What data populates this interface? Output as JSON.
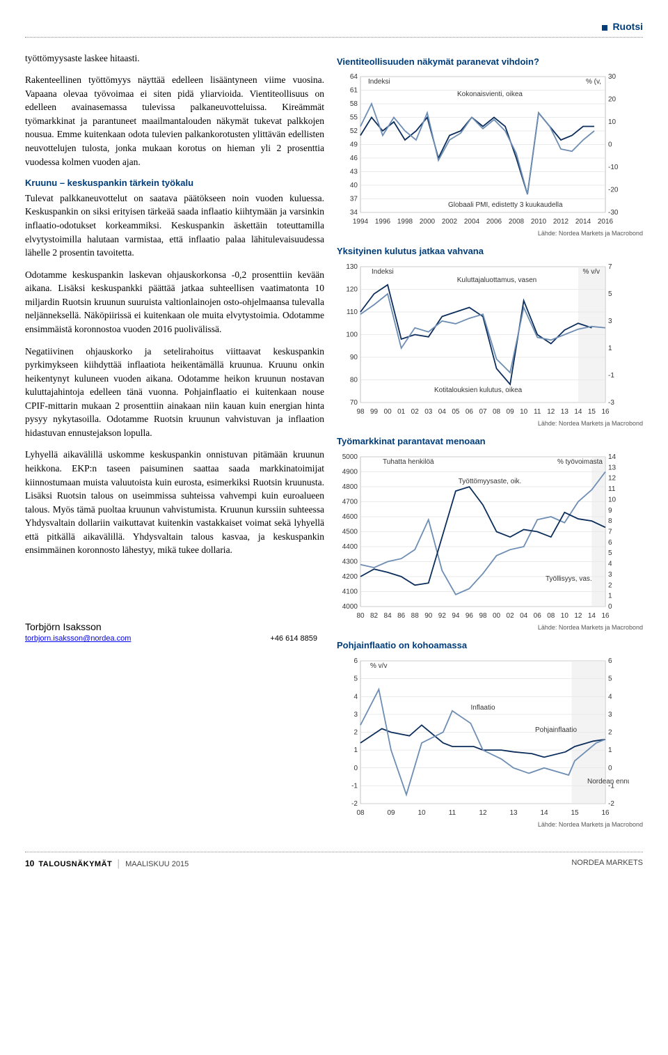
{
  "header": {
    "country": "Ruotsi"
  },
  "body": {
    "p1": "työttömyysaste laskee hitaasti.",
    "p2": "Rakenteellinen työttömyys näyttää edelleen lisääntyneen viime vuosina. Vapaana olevaa työvoimaa ei siten pidä yliarvioida. Vientiteollisuus on edelleen avainasemassa tulevissa palkaneuvotteluissa. Kireämmät työmarkkinat ja parantuneet maailmantalouden näkymät tukevat palkkojen nousua. Emme kuitenkaan odota tulevien palkankorotusten ylittävän edellisten neuvottelujen tulosta, jonka mukaan korotus on hieman yli 2 prosenttia vuodessa kolmen vuoden ajan.",
    "sub1": "Kruunu – keskuspankin tärkein työkalu",
    "p3": "Tulevat palkkaneuvottelut on saatava päätökseen noin vuoden kuluessa. Keskuspankin on siksi erityisen tärkeää saada inflaatio kiihtymään ja varsinkin inflaatio-odotukset korkeammiksi. Keskuspankin äskettäin toteuttamilla elvytystoimilla halutaan varmistaa, että inflaatio palaa lähitulevaisuudessa lähelle 2 prosentin tavoitetta.",
    "p4": "Odotamme keskuspankin laskevan ohjauskorkonsa -0,2 prosenttiin kevään aikana. Lisäksi keskuspankki päättää jatkaa suhteellisen vaatimatonta 10 miljardin Ruotsin kruunun suuruista valtionlainojen osto-ohjelmaansa tulevalla neljänneksellä. Näköpiirissä ei kuitenkaan ole muita elvytystoimia. Odotamme ensimmäistä koronnostoa vuoden 2016 puolivälissä.",
    "p5": "Negatiivinen ohjauskorko ja setelirahoitus viittaavat keskuspankin pyrkimykseen kiihdyttää inflaatiota heikentämällä kruunua. Kruunu onkin heikentynyt kuluneen vuoden aikana. Odotamme heikon kruunun nostavan kuluttajahintoja edelleen tänä vuonna. Pohjainflaatio ei kuitenkaan nouse CPIF-mittarin mukaan 2 prosenttiin ainakaan niin kauan kuin energian hinta pysyy nykytasoilla. Odotamme Ruotsin kruunun vahvistuvan ja inflaation hidastuvan ennustejakson lopulla.",
    "p6": "Lyhyellä aikavälillä uskomme keskuspankin onnistuvan pitämään kruunun heikkona. EKP:n taseen paisuminen saattaa saada markkinatoimijat kiinnostumaan muista valuutoista kuin eurosta, esimerkiksi Ruotsin kruunusta. Lisäksi Ruotsin talous on useimmissa suhteissa vahvempi kuin euroalueen talous. Myös tämä puoltaa kruunun vahvistumista. Kruunun kurssiin suhteessa Yhdysvaltain dollariin vaikuttavat kuitenkin vastakkaiset voimat sekä lyhyellä että pitkällä aikavälillä. Yhdysvaltain talous kasvaa, ja keskuspankin ensimmäinen koronnosto lähestyy, mikä tukee dollaria."
  },
  "author": {
    "name": "Torbjörn Isaksson",
    "email": "torbjorn.isaksson@nordea.com",
    "phone": "+46 614 8859"
  },
  "charts": {
    "c1": {
      "title": "Vientiteollisuuden näkymät paranevat vihdoin?",
      "yl_unit": "Indeksi",
      "yr_unit": "% (v,",
      "series1_label": "Kokonaisvienti, oikea",
      "series2_label": "Globaali PMI, edistetty 3 kuukaudella",
      "source": "Lähde: Nordea Markets ja Macrobond",
      "colors": {
        "dark": "#0b2d5b",
        "light": "#6d8db3",
        "grid": "#d6d6d6"
      },
      "yl": {
        "min": 34,
        "max": 64,
        "step": 3
      },
      "yr": {
        "min": -30,
        "max": 30,
        "step": 10
      },
      "x": {
        "min": 1994,
        "max": 2016,
        "step": 2
      },
      "s_light": [
        [
          1994,
          8
        ],
        [
          1995,
          18
        ],
        [
          1996,
          4
        ],
        [
          1997,
          12
        ],
        [
          1998,
          6
        ],
        [
          1999,
          2
        ],
        [
          2000,
          14
        ],
        [
          2001,
          -7
        ],
        [
          2002,
          2
        ],
        [
          2003,
          5
        ],
        [
          2004,
          12
        ],
        [
          2005,
          7
        ],
        [
          2006,
          11
        ],
        [
          2007,
          6
        ],
        [
          2008,
          -4
        ],
        [
          2009,
          -22
        ],
        [
          2010,
          14
        ],
        [
          2011,
          8
        ],
        [
          2012,
          -2
        ],
        [
          2013,
          -3
        ],
        [
          2014,
          2
        ],
        [
          2015,
          6
        ]
      ],
      "s_dark": [
        [
          1994,
          51
        ],
        [
          1995,
          55
        ],
        [
          1996,
          52
        ],
        [
          1997,
          54
        ],
        [
          1998,
          50
        ],
        [
          1999,
          52
        ],
        [
          2000,
          55
        ],
        [
          2001,
          46
        ],
        [
          2002,
          51
        ],
        [
          2003,
          52
        ],
        [
          2004,
          55
        ],
        [
          2005,
          53
        ],
        [
          2006,
          55
        ],
        [
          2007,
          53
        ],
        [
          2008,
          46
        ],
        [
          2009,
          38
        ],
        [
          2010,
          56
        ],
        [
          2011,
          53
        ],
        [
          2012,
          50
        ],
        [
          2013,
          51
        ],
        [
          2014,
          53
        ],
        [
          2015,
          53
        ]
      ]
    },
    "c2": {
      "title": "Yksityinen kulutus jatkaa vahvana",
      "yl_unit": "Indeksi",
      "yr_unit": "% v/v",
      "series1_label": "Kuluttajaluottamus, vasen",
      "series2_label": "Kotitalouksien kulutus, oikea",
      "source": "Lähde: Nordea Markets ja Macrobond",
      "colors": {
        "dark": "#0b2d5b",
        "light": "#6d8db3",
        "grid": "#d6d6d6"
      },
      "yl": {
        "min": 70,
        "max": 130,
        "step": 10
      },
      "yr": {
        "min": -3,
        "max": 7,
        "step": 2
      },
      "x_labels": [
        "98",
        "99",
        "00",
        "01",
        "02",
        "03",
        "04",
        "05",
        "06",
        "07",
        "08",
        "09",
        "10",
        "11",
        "12",
        "13",
        "14",
        "15",
        "16"
      ],
      "s_dark": [
        [
          0,
          110
        ],
        [
          1,
          118
        ],
        [
          2,
          122
        ],
        [
          3,
          98
        ],
        [
          4,
          100
        ],
        [
          5,
          99
        ],
        [
          6,
          108
        ],
        [
          7,
          110
        ],
        [
          8,
          112
        ],
        [
          9,
          108
        ],
        [
          10,
          85
        ],
        [
          11,
          78
        ],
        [
          12,
          115
        ],
        [
          13,
          100
        ],
        [
          14,
          96
        ],
        [
          15,
          102
        ],
        [
          16,
          105
        ],
        [
          17,
          103
        ]
      ],
      "s_light": [
        [
          0,
          3.5
        ],
        [
          1,
          4.2
        ],
        [
          2,
          5.0
        ],
        [
          3,
          1.0
        ],
        [
          4,
          2.5
        ],
        [
          5,
          2.2
        ],
        [
          6,
          3.0
        ],
        [
          7,
          2.8
        ],
        [
          8,
          3.2
        ],
        [
          9,
          3.5
        ],
        [
          10,
          0.2
        ],
        [
          11,
          -0.8
        ],
        [
          12,
          4.0
        ],
        [
          13,
          1.8
        ],
        [
          14,
          1.6
        ],
        [
          15,
          2.0
        ],
        [
          16,
          2.4
        ],
        [
          17,
          2.6
        ],
        [
          18,
          2.5
        ]
      ],
      "forecast_from": 16
    },
    "c3": {
      "title": "Työmarkkinat parantavat menoaan",
      "yl_unit": "Tuhatta henkilöä",
      "yr_unit": "% työvoimasta",
      "series1_label": "Työttömyysaste, oik.",
      "series2_label": "Työllisyys, vas.",
      "source": "Lähde: Nordea Markets ja Macrobond",
      "colors": {
        "dark": "#0b2d5b",
        "light": "#6d8db3",
        "grid": "#d6d6d6"
      },
      "yl": {
        "min": 4000,
        "max": 5000,
        "step": 100
      },
      "yr": {
        "min": 0,
        "max": 14,
        "step": 1
      },
      "x": {
        "min": 80,
        "max": 16,
        "step": 2
      },
      "x_labels": [
        "80",
        "82",
        "84",
        "86",
        "88",
        "90",
        "92",
        "94",
        "96",
        "98",
        "00",
        "02",
        "04",
        "06",
        "08",
        "10",
        "12",
        "14",
        "16"
      ],
      "s_light": [
        [
          0,
          4280
        ],
        [
          1,
          4260
        ],
        [
          2,
          4300
        ],
        [
          3,
          4320
        ],
        [
          4,
          4380
        ],
        [
          5,
          4580
        ],
        [
          6,
          4240
        ],
        [
          7,
          4080
        ],
        [
          8,
          4120
        ],
        [
          9,
          4220
        ],
        [
          10,
          4340
        ],
        [
          11,
          4380
        ],
        [
          12,
          4400
        ],
        [
          13,
          4580
        ],
        [
          14,
          4600
        ],
        [
          15,
          4560
        ],
        [
          16,
          4700
        ],
        [
          17,
          4780
        ],
        [
          18,
          4900
        ]
      ],
      "s_dark": [
        [
          0,
          2.8
        ],
        [
          1,
          3.5
        ],
        [
          2,
          3.2
        ],
        [
          3,
          2.8
        ],
        [
          4,
          2.0
        ],
        [
          5,
          2.2
        ],
        [
          6,
          6.5
        ],
        [
          7,
          10.8
        ],
        [
          8,
          11.2
        ],
        [
          9,
          9.5
        ],
        [
          10,
          7.0
        ],
        [
          11,
          6.5
        ],
        [
          12,
          7.2
        ],
        [
          13,
          7.0
        ],
        [
          14,
          6.5
        ],
        [
          15,
          8.8
        ],
        [
          16,
          8.2
        ],
        [
          17,
          8.0
        ],
        [
          18,
          7.4
        ]
      ],
      "forecast_from": 17
    },
    "c4": {
      "title": "Pohjainflaatio on kohoamassa",
      "yl_unit": "% v/v",
      "series1_label": "Inflaatio",
      "series2_label": "Pohjainflaatio",
      "series3_label": "Nordean ennuste",
      "source": "Lähde: Nordea Markets ja Macrobond",
      "colors": {
        "dark": "#0b2d5b",
        "light": "#6d8db3",
        "grid": "#d6d6d6"
      },
      "y": {
        "min": -2,
        "max": 6,
        "step": 1
      },
      "x_labels": [
        "08",
        "09",
        "10",
        "11",
        "12",
        "13",
        "14",
        "15",
        "16"
      ],
      "s_light": [
        [
          0,
          2.4
        ],
        [
          0.6,
          4.4
        ],
        [
          1,
          1.0
        ],
        [
          1.5,
          -1.5
        ],
        [
          2,
          1.4
        ],
        [
          2.7,
          2.0
        ],
        [
          3,
          3.2
        ],
        [
          3.6,
          2.5
        ],
        [
          4,
          1.0
        ],
        [
          4.6,
          0.5
        ],
        [
          5,
          0.0
        ],
        [
          5.5,
          -0.3
        ],
        [
          6,
          0.0
        ],
        [
          6.8,
          -0.4
        ],
        [
          7,
          0.4
        ],
        [
          7.7,
          1.4
        ],
        [
          8,
          1.6
        ]
      ],
      "s_dark": [
        [
          0,
          1.4
        ],
        [
          0.7,
          2.2
        ],
        [
          1,
          2.0
        ],
        [
          1.6,
          1.8
        ],
        [
          2,
          2.4
        ],
        [
          2.7,
          1.4
        ],
        [
          3,
          1.2
        ],
        [
          3.7,
          1.2
        ],
        [
          4,
          1.0
        ],
        [
          4.6,
          1.0
        ],
        [
          5,
          0.9
        ],
        [
          5.6,
          0.8
        ],
        [
          6,
          0.6
        ],
        [
          6.7,
          0.9
        ],
        [
          7,
          1.2
        ],
        [
          7.6,
          1.5
        ],
        [
          8,
          1.6
        ]
      ],
      "forecast_from": 6.9
    }
  },
  "footer": {
    "page": "10",
    "title": "TALOUSNÄKYMÄT",
    "issue": "MAALISKUU 2015",
    "brand": "NORDEA MARKETS"
  }
}
